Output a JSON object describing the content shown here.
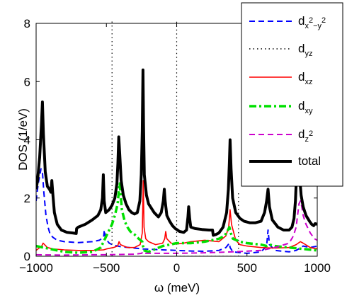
{
  "chart_data": {
    "type": "line",
    "xlabel": "ω (meV)",
    "ylabel": "DOS (1/eV)",
    "xlim": [
      -1000,
      1000
    ],
    "ylim": [
      0,
      8
    ],
    "xticks": [
      "−1000",
      "−500",
      "0",
      "500",
      "1000"
    ],
    "yticks": [
      "0",
      "2",
      "4",
      "6",
      "8"
    ],
    "grid": false,
    "legend_position": "top-right",
    "series": [
      {
        "name": "d_{x^2-y^2}",
        "legend": {
          "base": "d",
          "sub": "x",
          "sup": "2",
          "sub2": "−y",
          "sup2": "2"
        },
        "color": "#0000ff",
        "style": "dashed",
        "points": [
          [
            -1000,
            1.9
          ],
          [
            -985,
            2.5
          ],
          [
            -965,
            3.0
          ],
          [
            -955,
            2.9
          ],
          [
            -945,
            2.2
          ],
          [
            -930,
            1.4
          ],
          [
            -915,
            1.0
          ],
          [
            -900,
            0.75
          ],
          [
            -880,
            0.65
          ],
          [
            -850,
            0.55
          ],
          [
            -800,
            0.5
          ],
          [
            -700,
            0.47
          ],
          [
            -600,
            0.5
          ],
          [
            -550,
            0.55
          ],
          [
            -520,
            0.65
          ],
          [
            -515,
            0.9
          ],
          [
            -505,
            0.6
          ],
          [
            -480,
            0.45
          ],
          [
            -450,
            0.38
          ],
          [
            -420,
            0.35
          ],
          [
            -400,
            0.33
          ],
          [
            -300,
            0.28
          ],
          [
            -240,
            0.25
          ],
          [
            -100,
            0.22
          ],
          [
            0,
            0.2
          ],
          [
            100,
            0.18
          ],
          [
            200,
            0.17
          ],
          [
            300,
            0.2
          ],
          [
            350,
            0.3
          ],
          [
            375,
            0.45
          ],
          [
            380,
            0.3
          ],
          [
            400,
            0.15
          ],
          [
            500,
            0.1
          ],
          [
            600,
            0.15
          ],
          [
            640,
            0.35
          ],
          [
            650,
            0.9
          ],
          [
            660,
            0.4
          ],
          [
            700,
            0.2
          ],
          [
            800,
            0.15
          ],
          [
            850,
            0.2
          ],
          [
            900,
            0.35
          ],
          [
            950,
            0.3
          ],
          [
            1000,
            0.35
          ]
        ]
      },
      {
        "name": "d_{yz}",
        "legend": {
          "base": "d",
          "sub": "yz"
        },
        "color": "#000000",
        "style": "dotted",
        "points": [
          [
            -460,
            0
          ],
          [
            -460,
            8.2
          ],
          [
            0,
            8.2
          ],
          [
            0,
            0
          ],
          [
            440,
            0
          ],
          [
            440,
            2.2
          ]
        ]
      },
      {
        "name": "d_{xz}",
        "legend": {
          "base": "d",
          "sub": "xz"
        },
        "color": "#ff0000",
        "style": "solid",
        "points": [
          [
            -1000,
            0.2
          ],
          [
            -960,
            0.35
          ],
          [
            -950,
            0.45
          ],
          [
            -940,
            0.4
          ],
          [
            -920,
            0.3
          ],
          [
            -880,
            0.25
          ],
          [
            -800,
            0.22
          ],
          [
            -700,
            0.2
          ],
          [
            -600,
            0.2
          ],
          [
            -520,
            0.22
          ],
          [
            -500,
            0.25
          ],
          [
            -450,
            0.3
          ],
          [
            -420,
            0.35
          ],
          [
            -410,
            0.5
          ],
          [
            -400,
            0.4
          ],
          [
            -350,
            0.3
          ],
          [
            -300,
            0.3
          ],
          [
            -260,
            0.4
          ],
          [
            -245,
            0.8
          ],
          [
            -238,
            2.6
          ],
          [
            -232,
            1.0
          ],
          [
            -220,
            0.6
          ],
          [
            -200,
            0.5
          ],
          [
            -150,
            0.4
          ],
          [
            -100,
            0.45
          ],
          [
            -85,
            0.6
          ],
          [
            -78,
            0.85
          ],
          [
            -70,
            0.6
          ],
          [
            -40,
            0.45
          ],
          [
            0,
            0.42
          ],
          [
            50,
            0.45
          ],
          [
            100,
            0.5
          ],
          [
            200,
            0.55
          ],
          [
            300,
            0.5
          ],
          [
            350,
            0.7
          ],
          [
            370,
            1.0
          ],
          [
            380,
            1.6
          ],
          [
            390,
            1.1
          ],
          [
            420,
            0.55
          ],
          [
            450,
            0.4
          ],
          [
            500,
            0.35
          ],
          [
            600,
            0.3
          ],
          [
            700,
            0.28
          ],
          [
            800,
            0.3
          ],
          [
            850,
            0.4
          ],
          [
            880,
            0.5
          ],
          [
            900,
            0.45
          ],
          [
            950,
            0.3
          ],
          [
            1000,
            0.25
          ]
        ]
      },
      {
        "name": "d_{xy}",
        "legend": {
          "base": "d",
          "sub": "xy"
        },
        "color": "#00e000",
        "style": "dashdot",
        "points": [
          [
            -1000,
            0.35
          ],
          [
            -900,
            0.25
          ],
          [
            -800,
            0.15
          ],
          [
            -700,
            0.12
          ],
          [
            -600,
            0.15
          ],
          [
            -540,
            0.3
          ],
          [
            -520,
            0.5
          ],
          [
            -500,
            0.7
          ],
          [
            -480,
            0.9
          ],
          [
            -460,
            1.1
          ],
          [
            -440,
            1.4
          ],
          [
            -420,
            1.8
          ],
          [
            -410,
            2.3
          ],
          [
            -405,
            2.5
          ],
          [
            -400,
            2.2
          ],
          [
            -390,
            1.6
          ],
          [
            -370,
            1.2
          ],
          [
            -350,
            1.0
          ],
          [
            -330,
            0.85
          ],
          [
            -300,
            0.75
          ],
          [
            -270,
            0.6
          ],
          [
            -245,
            0.5
          ],
          [
            -240,
            0.35
          ],
          [
            -230,
            0.2
          ],
          [
            -200,
            0.15
          ],
          [
            -150,
            0.25
          ],
          [
            -100,
            0.35
          ],
          [
            -50,
            0.4
          ],
          [
            0,
            0.45
          ],
          [
            100,
            0.45
          ],
          [
            200,
            0.5
          ],
          [
            250,
            0.55
          ],
          [
            300,
            0.6
          ],
          [
            340,
            0.7
          ],
          [
            360,
            0.85
          ],
          [
            375,
            1.0
          ],
          [
            385,
            0.8
          ],
          [
            400,
            0.6
          ],
          [
            450,
            0.5
          ],
          [
            500,
            0.45
          ],
          [
            600,
            0.4
          ],
          [
            640,
            0.35
          ],
          [
            660,
            0.4
          ],
          [
            700,
            0.35
          ],
          [
            800,
            0.3
          ],
          [
            900,
            0.25
          ],
          [
            1000,
            0.2
          ]
        ]
      },
      {
        "name": "d_{z^2}",
        "legend": {
          "base": "d",
          "sub": "z",
          "sup": "2"
        },
        "color": "#cc00cc",
        "style": "dashed",
        "points": [
          [
            -1000,
            0.05
          ],
          [
            -800,
            0.04
          ],
          [
            -600,
            0.05
          ],
          [
            -500,
            0.05
          ],
          [
            -400,
            0.06
          ],
          [
            -300,
            0.07
          ],
          [
            -250,
            0.1
          ],
          [
            -240,
            0.15
          ],
          [
            -230,
            0.1
          ],
          [
            -100,
            0.1
          ],
          [
            0,
            0.1
          ],
          [
            200,
            0.12
          ],
          [
            400,
            0.15
          ],
          [
            600,
            0.2
          ],
          [
            700,
            0.3
          ],
          [
            800,
            0.45
          ],
          [
            830,
            0.7
          ],
          [
            850,
            1.0
          ],
          [
            860,
            1.4
          ],
          [
            870,
            1.8
          ],
          [
            880,
            1.9
          ],
          [
            890,
            1.7
          ],
          [
            900,
            1.4
          ],
          [
            920,
            1.1
          ],
          [
            950,
            0.8
          ],
          [
            980,
            0.6
          ],
          [
            1000,
            0.55
          ]
        ]
      },
      {
        "name": "total",
        "legend": {
          "base": "total"
        },
        "color": "#000000",
        "style": "solid-thick",
        "points": [
          [
            -1000,
            2.3
          ],
          [
            -990,
            2.6
          ],
          [
            -975,
            3.4
          ],
          [
            -962,
            4.5
          ],
          [
            -955,
            5.3
          ],
          [
            -948,
            4.2
          ],
          [
            -935,
            2.9
          ],
          [
            -920,
            2.4
          ],
          [
            -905,
            2.3
          ],
          [
            -895,
            2.2
          ],
          [
            -888,
            2.6
          ],
          [
            -882,
            2.2
          ],
          [
            -870,
            1.5
          ],
          [
            -850,
            1.1
          ],
          [
            -820,
            0.9
          ],
          [
            -780,
            0.82
          ],
          [
            -740,
            0.8
          ],
          [
            -715,
            0.78
          ],
          [
            -712,
            0.95
          ],
          [
            -700,
            1.0
          ],
          [
            -650,
            1.1
          ],
          [
            -600,
            1.25
          ],
          [
            -560,
            1.4
          ],
          [
            -540,
            1.6
          ],
          [
            -528,
            2.0
          ],
          [
            -522,
            2.8
          ],
          [
            -516,
            1.9
          ],
          [
            -505,
            1.5
          ],
          [
            -480,
            1.6
          ],
          [
            -460,
            1.75
          ],
          [
            -440,
            2.0
          ],
          [
            -425,
            2.5
          ],
          [
            -418,
            3.2
          ],
          [
            -412,
            4.1
          ],
          [
            -405,
            3.5
          ],
          [
            -395,
            2.6
          ],
          [
            -380,
            2.1
          ],
          [
            -360,
            1.8
          ],
          [
            -340,
            1.6
          ],
          [
            -320,
            1.5
          ],
          [
            -300,
            1.45
          ],
          [
            -280,
            1.5
          ],
          [
            -262,
            1.9
          ],
          [
            -252,
            2.8
          ],
          [
            -245,
            4.3
          ],
          [
            -240,
            6.4
          ],
          [
            -236,
            4.5
          ],
          [
            -230,
            2.8
          ],
          [
            -215,
            2.1
          ],
          [
            -200,
            1.8
          ],
          [
            -160,
            1.5
          ],
          [
            -130,
            1.35
          ],
          [
            -110,
            1.5
          ],
          [
            -95,
            1.9
          ],
          [
            -88,
            2.3
          ],
          [
            -82,
            1.9
          ],
          [
            -70,
            1.4
          ],
          [
            -50,
            1.2
          ],
          [
            -30,
            1.05
          ],
          [
            -10,
            0.95
          ],
          [
            0,
            0.92
          ],
          [
            20,
            0.85
          ],
          [
            50,
            0.82
          ],
          [
            70,
            0.9
          ],
          [
            80,
            1.35
          ],
          [
            85,
            1.7
          ],
          [
            92,
            1.3
          ],
          [
            100,
            1.0
          ],
          [
            130,
            0.95
          ],
          [
            180,
            0.92
          ],
          [
            230,
            0.9
          ],
          [
            255,
            0.9
          ],
          [
            260,
            0.72
          ],
          [
            280,
            0.75
          ],
          [
            300,
            0.8
          ],
          [
            330,
            1.0
          ],
          [
            355,
            1.5
          ],
          [
            368,
            2.3
          ],
          [
            375,
            3.2
          ],
          [
            380,
            4.0
          ],
          [
            387,
            3.0
          ],
          [
            398,
            2.0
          ],
          [
            420,
            1.5
          ],
          [
            450,
            1.3
          ],
          [
            480,
            1.2
          ],
          [
            520,
            1.15
          ],
          [
            560,
            1.15
          ],
          [
            600,
            1.2
          ],
          [
            625,
            1.5
          ],
          [
            640,
            1.9
          ],
          [
            650,
            2.3
          ],
          [
            660,
            1.7
          ],
          [
            680,
            1.25
          ],
          [
            720,
            1.0
          ],
          [
            760,
            0.9
          ],
          [
            800,
            0.9
          ],
          [
            820,
            1.0
          ],
          [
            835,
            1.3
          ],
          [
            845,
            1.9
          ],
          [
            855,
            3.1
          ],
          [
            862,
            3.4
          ],
          [
            872,
            2.9
          ],
          [
            885,
            2.1
          ],
          [
            900,
            1.7
          ],
          [
            920,
            1.4
          ],
          [
            945,
            1.2
          ],
          [
            960,
            1.1
          ],
          [
            975,
            1.05
          ],
          [
            985,
            1.12
          ],
          [
            1000,
            1.1
          ]
        ]
      }
    ]
  }
}
